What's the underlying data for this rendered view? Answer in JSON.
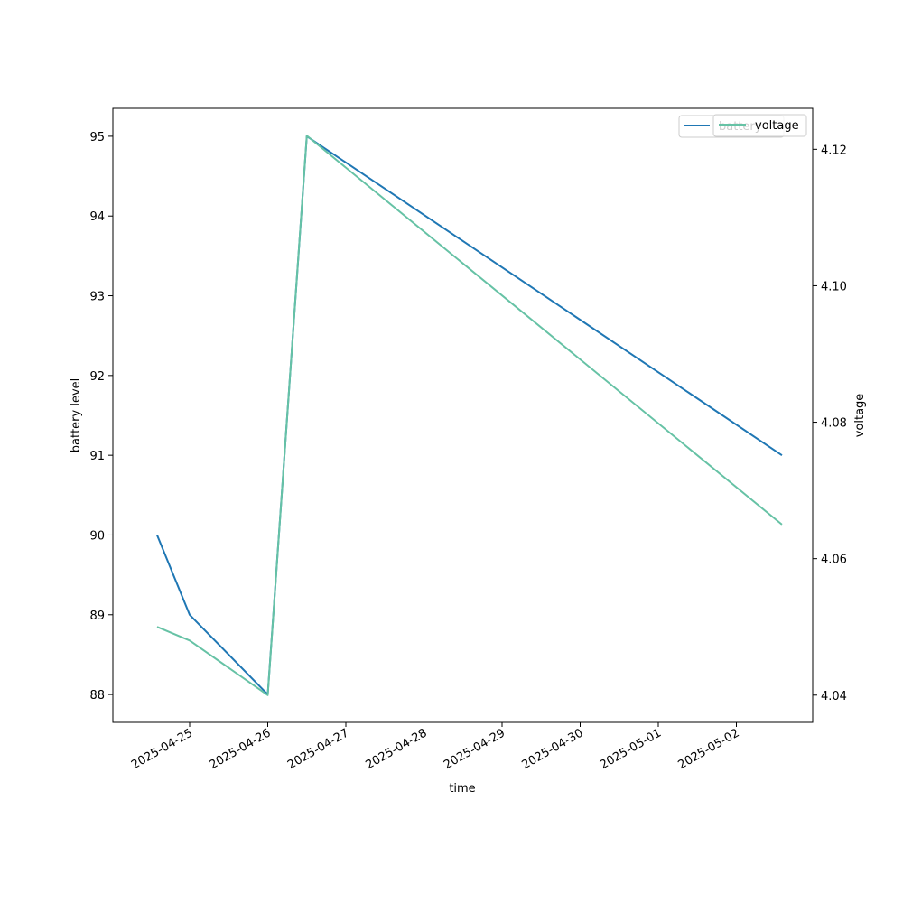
{
  "chart_data": {
    "type": "line",
    "xlabel": "time",
    "ylabel": "battery level",
    "y2label": "voltage",
    "x_ticks": [
      "2025-04-25",
      "2025-04-26",
      "2025-04-27",
      "2025-04-28",
      "2025-04-29",
      "2025-04-30",
      "2025-05-01",
      "2025-05-02"
    ],
    "y_ticks": [
      "88",
      "89",
      "90",
      "91",
      "92",
      "93",
      "94",
      "95"
    ],
    "y2_ticks": [
      "4.04",
      "4.06",
      "4.08",
      "4.10",
      "4.12"
    ],
    "ylim": [
      87.65,
      95.35
    ],
    "y2lim": [
      4.036,
      4.126
    ],
    "series": [
      {
        "name": "battery",
        "axis": "left",
        "color": "#1f77b4",
        "x": [
          "2025-04-24T14:00",
          "2025-04-25T00:00",
          "2025-04-26T00:00",
          "2025-04-26T12:00",
          "2025-05-02T14:00"
        ],
        "y": [
          90,
          89,
          88,
          95,
          91
        ]
      },
      {
        "name": "voltage",
        "axis": "right",
        "color": "#66c2a5",
        "x": [
          "2025-04-24T14:00",
          "2025-04-25T00:00",
          "2025-04-26T00:00",
          "2025-04-26T12:00",
          "2025-05-02T14:00"
        ],
        "y": [
          4.05,
          4.048,
          4.04,
          4.122,
          4.065
        ]
      }
    ],
    "legend": [
      {
        "label": "battery",
        "position": "upper-right"
      },
      {
        "label": "voltage",
        "position": "upper-right"
      }
    ],
    "grid": false
  }
}
